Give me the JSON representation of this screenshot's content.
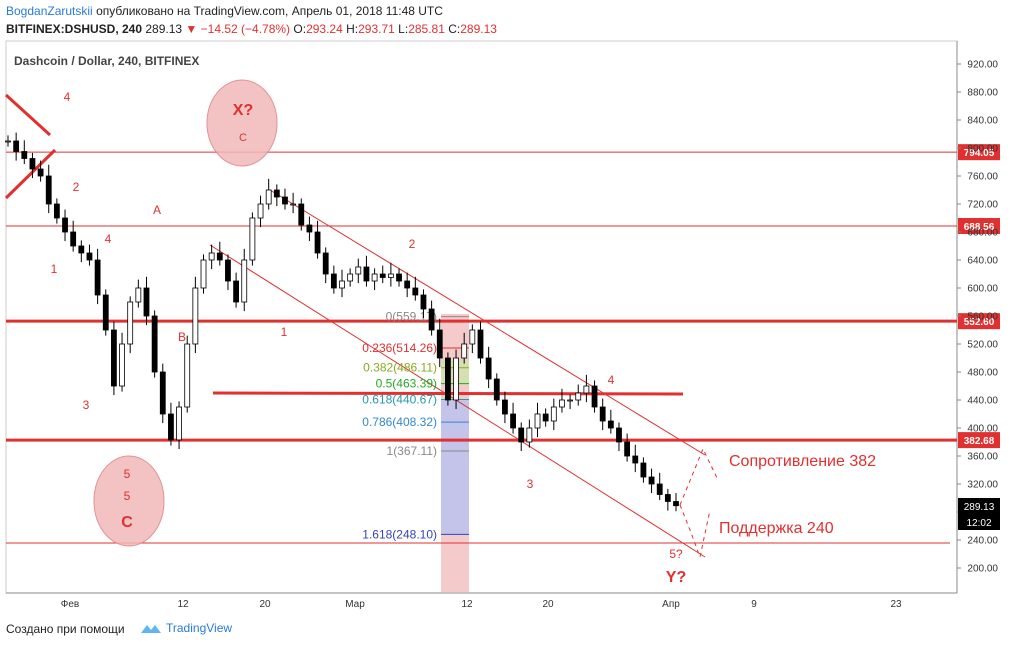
{
  "header": {
    "author": "BogdanZarutskii",
    "published_text": "опубликовано на TradingView.com, Апрель 01, 2018 11:48 UTC",
    "symbol": "BITFINEX:DSHUSD, 240",
    "last_price": "289.13",
    "change": "−14.52 (−4.78%)",
    "o_label": "O:",
    "o_value": "293.24",
    "h_label": "H:",
    "h_value": "293.71",
    "l_label": "L:",
    "l_value": "285.81",
    "c_label": "C:",
    "c_value": "289.13"
  },
  "chart": {
    "title": "Dashcoin / Dollar, 240, BITFINEX",
    "price_label": "289.13",
    "countdown_label": "12:02"
  },
  "chart_data": {
    "type": "candlestick",
    "title": "Dashcoin / Dollar, 240, BITFINEX",
    "xlabel": "",
    "ylabel": "",
    "ylim": [
      170,
      960
    ],
    "y_ticks": [
      "920.00",
      "880.00",
      "840.00",
      "800.00",
      "760.00",
      "720.00",
      "680.00",
      "640.00",
      "600.00",
      "560.00",
      "520.00",
      "480.00",
      "440.00",
      "400.00",
      "360.00",
      "320.00",
      "280.00",
      "240.00",
      "200.00"
    ],
    "x_ticks": [
      "Фев",
      "12",
      "20",
      "Мар",
      "12",
      "20",
      "Апр",
      "9",
      "23"
    ],
    "close_series_approx": [
      810,
      795,
      785,
      770,
      760,
      720,
      700,
      680,
      660,
      650,
      640,
      590,
      540,
      460,
      520,
      580,
      600,
      560,
      480,
      420,
      383,
      430,
      520,
      600,
      640,
      650,
      640,
      610,
      580,
      640,
      700,
      720,
      740,
      730,
      720,
      720,
      690,
      680,
      650,
      620,
      600,
      610,
      620,
      630,
      610,
      620,
      615,
      620,
      610,
      600,
      590,
      570,
      540,
      500,
      440,
      500,
      520,
      540,
      500,
      470,
      440,
      420,
      400,
      380,
      400,
      420,
      410,
      430,
      440,
      440,
      450,
      460,
      430,
      410,
      400,
      380,
      360,
      350,
      330,
      320,
      305,
      295,
      289
    ],
    "horizontal_levels": [
      {
        "price": "794.05",
        "weight": "thin"
      },
      {
        "price": "688.56",
        "weight": "thin"
      },
      {
        "price": "552.60",
        "weight": "thick"
      },
      {
        "price": "382.68",
        "weight": "thick"
      }
    ],
    "fibonacci": [
      {
        "ratio": "0",
        "label": "0(559.17)",
        "color": "#888888"
      },
      {
        "ratio": "0.236",
        "label": "0.236(514.26)",
        "color": "#e03030"
      },
      {
        "ratio": "0.382",
        "label": "0.382(486.11)",
        "color": "#88aa22"
      },
      {
        "ratio": "0.5",
        "label": "0.5(463.39)",
        "color": "#22aa22"
      },
      {
        "ratio": "0.618",
        "label": "0.618(440.67)",
        "color": "#2299aa"
      },
      {
        "ratio": "0.786",
        "label": "0.786(408.32)",
        "color": "#3388cc"
      },
      {
        "ratio": "1",
        "label": "1(367.11)",
        "color": "#888888"
      },
      {
        "ratio": "1.618",
        "label": "1.618(248.10)",
        "color": "#3344bb"
      }
    ],
    "wave_labels": [
      "4",
      "2",
      "1",
      "4",
      "3",
      "A",
      "B",
      "1",
      "2",
      "3",
      "4",
      "X?",
      "C",
      "5",
      "5",
      "C",
      "5?",
      "Y?"
    ],
    "annotations": [
      "Сопротивление 382",
      "Поддержка 240"
    ],
    "colors": {
      "annotation_red": "#e03030",
      "candle": "#000000",
      "fib_zone_pink": "#f2b8b8",
      "fib_zone_blue": "#b8c0f0"
    }
  },
  "footer": {
    "created_with": "Создано при помощи",
    "brand": "TradingView"
  }
}
